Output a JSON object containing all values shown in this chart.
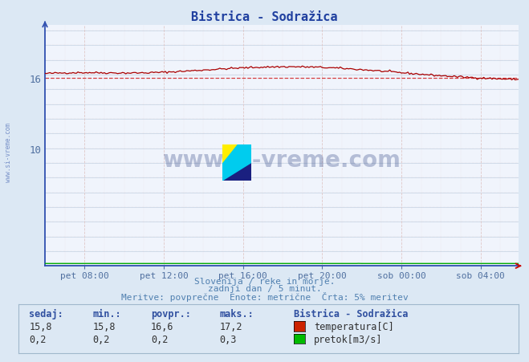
{
  "title": "Bistrica - Sodražica",
  "bg_color": "#dce8f4",
  "plot_bg_color": "#f0f4fc",
  "grid_color_h": "#b8cce0",
  "grid_color_v_dash": "#e0c8c8",
  "y_label_color": "#5070a0",
  "x_label_color": "#5070a0",
  "title_color": "#2040a0",
  "spine_color_left": "#3050b0",
  "spine_color_bottom": "#3050b0",
  "arrow_color_y": "#3050b0",
  "arrow_color_x": "#cc0000",
  "ylabel": "",
  "xlabel": "",
  "ylim": [
    0,
    20.5
  ],
  "ytick_positions": [
    10,
    16
  ],
  "ytick_labels": [
    "10",
    "16"
  ],
  "xtick_labels": [
    "pet 08:00",
    "pet 12:00",
    "pet 16:00",
    "pet 20:00",
    "sob 00:00",
    "sob 04:00"
  ],
  "n_points": 288,
  "temp_color": "#aa0000",
  "flow_color": "#00aa00",
  "dashed_line_value": 16.0,
  "dashed_line_color": "#cc0000",
  "subtitle1": "Slovenija / reke in morje.",
  "subtitle2": "zadnji dan / 5 minut.",
  "subtitle3": "Meritve: povprečne  Enote: metrične  Črta: 5% meritev",
  "legend_title": "Bistrica - Sodražica",
  "legend_temp_label": "temperatura[C]",
  "legend_flow_label": "pretok[m3/s]",
  "sedaj_label": "sedaj:",
  "min_label": "min.:",
  "povpr_label": "povpr.:",
  "maks_label": "maks.:",
  "temp_sedaj": "15,8",
  "temp_min_str": "15,8",
  "temp_povpr_str": "16,6",
  "temp_maks_str": "17,2",
  "flow_sedaj": "0,2",
  "flow_min_str": "0,2",
  "flow_povpr_str": "0,2",
  "flow_maks_str": "0,3",
  "watermark_text": "www.si-vreme.com",
  "sidebar_text": "www.si-vreme.com",
  "temp_color_swatch": "#cc2200",
  "flow_color_swatch": "#00bb00"
}
